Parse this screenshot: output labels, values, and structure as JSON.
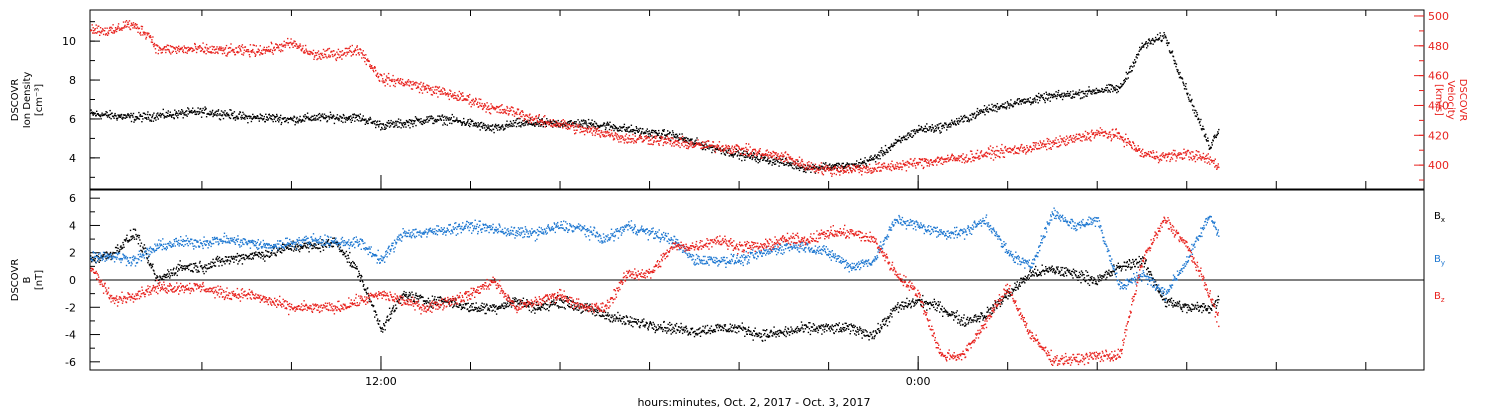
{
  "colors": {
    "black": "#000000",
    "red": "#e8231f",
    "blue": "#1f78d1"
  },
  "xaxis": {
    "label": "hours:minutes, Oct.  2, 2017 - Oct.  3, 2017",
    "tick_labels": [
      {
        "t": 12,
        "label": "12:00"
      },
      {
        "t": 24,
        "label": "0:00"
      }
    ],
    "range_hours": [
      5.5,
      35.3
    ],
    "minor_tick_hours": 2
  },
  "chart_data": [
    {
      "type": "scatter",
      "panel": "top",
      "ylabel_left": [
        "DSCOVR",
        "Ion Density",
        "[cm⁻³]"
      ],
      "ylabel_right": [
        "DSCOVR",
        "Velocity",
        "[km/s]"
      ],
      "ylim_left": [
        2.4,
        11.6
      ],
      "ylim_right": [
        384,
        504
      ],
      "yticks_left": [
        4,
        6,
        8,
        10
      ],
      "yticks_right": [
        400,
        420,
        440,
        460,
        480,
        500
      ],
      "series": [
        {
          "axis": "left",
          "color": "black",
          "values": [
            [
              5.5,
              6.3
            ],
            [
              6.0,
              6.2
            ],
            [
              6.5,
              6.1
            ],
            [
              7.0,
              6.2
            ],
            [
              7.5,
              6.3
            ],
            [
              8.0,
              6.4
            ],
            [
              8.5,
              6.3
            ],
            [
              9.0,
              6.1
            ],
            [
              9.5,
              6.1
            ],
            [
              10.0,
              6.0
            ],
            [
              10.5,
              6.1
            ],
            [
              11.0,
              6.1
            ],
            [
              11.5,
              6.1
            ],
            [
              12.0,
              5.7
            ],
            [
              12.5,
              5.8
            ],
            [
              13.0,
              6.0
            ],
            [
              13.5,
              6.0
            ],
            [
              14.0,
              5.8
            ],
            [
              14.5,
              5.5
            ],
            [
              15.0,
              5.8
            ],
            [
              15.5,
              5.8
            ],
            [
              16.0,
              5.8
            ],
            [
              16.5,
              5.8
            ],
            [
              17.0,
              5.7
            ],
            [
              17.5,
              5.5
            ],
            [
              18.0,
              5.3
            ],
            [
              18.5,
              5.2
            ],
            [
              19.0,
              4.8
            ],
            [
              19.5,
              4.5
            ],
            [
              20.0,
              4.2
            ],
            [
              20.5,
              4.0
            ],
            [
              21.0,
              3.8
            ],
            [
              21.5,
              3.5
            ],
            [
              22.0,
              3.6
            ],
            [
              22.5,
              3.6
            ],
            [
              23.0,
              4.0
            ],
            [
              23.5,
              4.8
            ],
            [
              24.0,
              5.5
            ],
            [
              24.5,
              5.6
            ],
            [
              25.0,
              6.0
            ],
            [
              25.5,
              6.5
            ],
            [
              26.0,
              6.8
            ],
            [
              26.5,
              7.0
            ],
            [
              27.0,
              7.2
            ],
            [
              27.5,
              7.3
            ],
            [
              28.0,
              7.5
            ],
            [
              28.5,
              7.6
            ],
            [
              29.0,
              9.8
            ],
            [
              29.5,
              10.3
            ],
            [
              30.0,
              7.4
            ],
            [
              30.5,
              4.6
            ],
            [
              30.7,
              5.5
            ]
          ]
        },
        {
          "axis": "right",
          "color": "red",
          "values": [
            [
              5.5,
              492
            ],
            [
              6.0,
              490
            ],
            [
              6.3,
              495
            ],
            [
              6.5,
              493
            ],
            [
              6.8,
              488
            ],
            [
              7.0,
              478
            ],
            [
              7.5,
              478
            ],
            [
              8.0,
              478
            ],
            [
              8.5,
              477
            ],
            [
              9.0,
              477
            ],
            [
              9.5,
              478
            ],
            [
              10.0,
              482
            ],
            [
              10.5,
              474
            ],
            [
              11.0,
              475
            ],
            [
              11.5,
              478
            ],
            [
              12.0,
              458
            ],
            [
              12.5,
              456
            ],
            [
              13.0,
              452
            ],
            [
              13.5,
              448
            ],
            [
              14.0,
              444
            ],
            [
              14.5,
              438
            ],
            [
              15.0,
              436
            ],
            [
              15.5,
              430
            ],
            [
              16.0,
              428
            ],
            [
              16.5,
              424
            ],
            [
              17.0,
              422
            ],
            [
              17.5,
              418
            ],
            [
              18.0,
              418
            ],
            [
              18.5,
              416
            ],
            [
              19.0,
              414
            ],
            [
              19.5,
              413
            ],
            [
              20.0,
              411
            ],
            [
              20.5,
              408
            ],
            [
              21.0,
              406
            ],
            [
              21.5,
              400
            ],
            [
              22.0,
              397
            ],
            [
              22.5,
              398
            ],
            [
              23.0,
              398
            ],
            [
              23.5,
              400
            ],
            [
              24.0,
              402
            ],
            [
              24.5,
              404
            ],
            [
              25.0,
              405
            ],
            [
              25.5,
              408
            ],
            [
              26.0,
              410
            ],
            [
              26.5,
              412
            ],
            [
              27.0,
              415
            ],
            [
              27.5,
              418
            ],
            [
              28.0,
              422
            ],
            [
              28.5,
              420
            ],
            [
              29.0,
              408
            ],
            [
              29.5,
              406
            ],
            [
              30.0,
              408
            ],
            [
              30.5,
              404
            ],
            [
              30.7,
              400
            ]
          ]
        }
      ]
    },
    {
      "type": "scatter",
      "panel": "bottom",
      "ylabel_left": [
        "DSCOVR",
        "B",
        "[nT]"
      ],
      "ylim": [
        -6.6,
        6.6
      ],
      "yticks": [
        -6,
        -4,
        -2,
        0,
        2,
        4,
        6
      ],
      "zero_line": true,
      "legend": [
        {
          "text": "B",
          "sub": "x",
          "color": "black"
        },
        {
          "text": "B",
          "sub": "y",
          "color": "blue"
        },
        {
          "text": "B",
          "sub": "z",
          "color": "red"
        }
      ],
      "legend_position": "right",
      "series": [
        {
          "name": "Bx",
          "color": "black",
          "values": [
            [
              5.5,
              1.5
            ],
            [
              6.0,
              2.0
            ],
            [
              6.5,
              3.5
            ],
            [
              7.0,
              0.0
            ],
            [
              7.5,
              1.0
            ],
            [
              8.0,
              1.0
            ],
            [
              8.5,
              1.5
            ],
            [
              9.0,
              1.8
            ],
            [
              9.5,
              2.0
            ],
            [
              10.0,
              2.5
            ],
            [
              10.5,
              2.5
            ],
            [
              11.0,
              2.8
            ],
            [
              11.5,
              0.5
            ],
            [
              12.0,
              -3.5
            ],
            [
              12.5,
              -1.0
            ],
            [
              13.0,
              -1.5
            ],
            [
              13.5,
              -1.5
            ],
            [
              14.0,
              -2.0
            ],
            [
              14.5,
              -2.0
            ],
            [
              15.0,
              -1.5
            ],
            [
              15.5,
              -2.0
            ],
            [
              16.0,
              -1.5
            ],
            [
              16.5,
              -2.0
            ],
            [
              17.0,
              -2.5
            ],
            [
              17.5,
              -3.0
            ],
            [
              18.0,
              -3.2
            ],
            [
              18.5,
              -3.5
            ],
            [
              19.0,
              -3.7
            ],
            [
              19.5,
              -3.5
            ],
            [
              20.0,
              -3.5
            ],
            [
              20.5,
              -4.0
            ],
            [
              21.0,
              -3.8
            ],
            [
              21.5,
              -3.5
            ],
            [
              22.0,
              -3.5
            ],
            [
              22.5,
              -3.5
            ],
            [
              23.0,
              -4.0
            ],
            [
              23.5,
              -2.0
            ],
            [
              24.0,
              -1.5
            ],
            [
              24.5,
              -2.0
            ],
            [
              25.0,
              -3.0
            ],
            [
              25.5,
              -2.5
            ],
            [
              26.0,
              -1.0
            ],
            [
              26.5,
              0.5
            ],
            [
              27.0,
              0.8
            ],
            [
              27.5,
              0.5
            ],
            [
              28.0,
              0.0
            ],
            [
              28.5,
              1.0
            ],
            [
              29.0,
              1.5
            ],
            [
              29.5,
              -1.5
            ],
            [
              30.0,
              -2.0
            ],
            [
              30.5,
              -2.0
            ],
            [
              30.7,
              -1.5
            ]
          ]
        },
        {
          "name": "By",
          "color": "blue",
          "values": [
            [
              5.5,
              1.8
            ],
            [
              6.0,
              1.8
            ],
            [
              6.5,
              1.5
            ],
            [
              7.0,
              2.5
            ],
            [
              7.5,
              2.8
            ],
            [
              8.0,
              2.8
            ],
            [
              8.5,
              3.0
            ],
            [
              9.0,
              2.8
            ],
            [
              9.5,
              2.5
            ],
            [
              10.0,
              2.8
            ],
            [
              10.5,
              3.0
            ],
            [
              11.0,
              2.8
            ],
            [
              11.5,
              2.8
            ],
            [
              12.0,
              1.5
            ],
            [
              12.5,
              3.5
            ],
            [
              13.0,
              3.5
            ],
            [
              13.5,
              3.8
            ],
            [
              14.0,
              4.0
            ],
            [
              14.5,
              3.8
            ],
            [
              15.0,
              3.5
            ],
            [
              15.5,
              3.5
            ],
            [
              16.0,
              4.0
            ],
            [
              16.5,
              3.8
            ],
            [
              17.0,
              3.0
            ],
            [
              17.5,
              4.0
            ],
            [
              18.0,
              3.5
            ],
            [
              18.5,
              3.0
            ],
            [
              19.0,
              1.5
            ],
            [
              19.5,
              1.5
            ],
            [
              20.0,
              1.5
            ],
            [
              20.5,
              2.0
            ],
            [
              21.0,
              2.5
            ],
            [
              21.5,
              2.5
            ],
            [
              22.0,
              2.0
            ],
            [
              22.5,
              1.0
            ],
            [
              23.0,
              1.5
            ],
            [
              23.5,
              4.5
            ],
            [
              24.0,
              4.0
            ],
            [
              24.5,
              3.5
            ],
            [
              25.0,
              3.5
            ],
            [
              25.5,
              4.5
            ],
            [
              26.0,
              2.0
            ],
            [
              26.5,
              1.0
            ],
            [
              27.0,
              5.0
            ],
            [
              27.5,
              4.0
            ],
            [
              28.0,
              4.5
            ],
            [
              28.5,
              -0.5
            ],
            [
              29.0,
              0.5
            ],
            [
              29.5,
              -1.0
            ],
            [
              30.0,
              1.5
            ],
            [
              30.5,
              4.8
            ],
            [
              30.7,
              3.5
            ]
          ]
        },
        {
          "name": "Bz",
          "color": "red",
          "values": [
            [
              5.5,
              1.0
            ],
            [
              6.0,
              -1.5
            ],
            [
              6.5,
              -1.0
            ],
            [
              7.0,
              -0.5
            ],
            [
              7.5,
              -0.5
            ],
            [
              8.0,
              -0.5
            ],
            [
              8.5,
              -1.0
            ],
            [
              9.0,
              -1.0
            ],
            [
              9.5,
              -1.5
            ],
            [
              10.0,
              -2.0
            ],
            [
              10.5,
              -2.0
            ],
            [
              11.0,
              -2.0
            ],
            [
              11.5,
              -1.5
            ],
            [
              12.0,
              -1.0
            ],
            [
              12.5,
              -1.5
            ],
            [
              13.0,
              -2.0
            ],
            [
              13.5,
              -1.5
            ],
            [
              14.0,
              -1.0
            ],
            [
              14.5,
              0.0
            ],
            [
              15.0,
              -2.0
            ],
            [
              15.5,
              -1.5
            ],
            [
              16.0,
              -1.0
            ],
            [
              16.5,
              -2.0
            ],
            [
              17.0,
              -2.0
            ],
            [
              17.5,
              0.5
            ],
            [
              18.0,
              0.5
            ],
            [
              18.5,
              2.5
            ],
            [
              19.0,
              2.5
            ],
            [
              19.5,
              3.0
            ],
            [
              20.0,
              2.5
            ],
            [
              20.5,
              2.5
            ],
            [
              21.0,
              3.0
            ],
            [
              21.5,
              3.0
            ],
            [
              22.0,
              3.5
            ],
            [
              22.5,
              3.5
            ],
            [
              23.0,
              3.0
            ],
            [
              23.5,
              0.5
            ],
            [
              24.0,
              -1.0
            ],
            [
              24.5,
              -5.5
            ],
            [
              25.0,
              -5.5
            ],
            [
              25.5,
              -3.0
            ],
            [
              26.0,
              -0.5
            ],
            [
              26.5,
              -4.0
            ],
            [
              27.0,
              -5.8
            ],
            [
              27.5,
              -5.8
            ],
            [
              28.0,
              -5.5
            ],
            [
              28.5,
              -5.5
            ],
            [
              29.0,
              1.5
            ],
            [
              29.5,
              4.5
            ],
            [
              30.0,
              2.5
            ],
            [
              30.5,
              -1.0
            ],
            [
              30.7,
              -3.0
            ]
          ]
        }
      ]
    }
  ]
}
